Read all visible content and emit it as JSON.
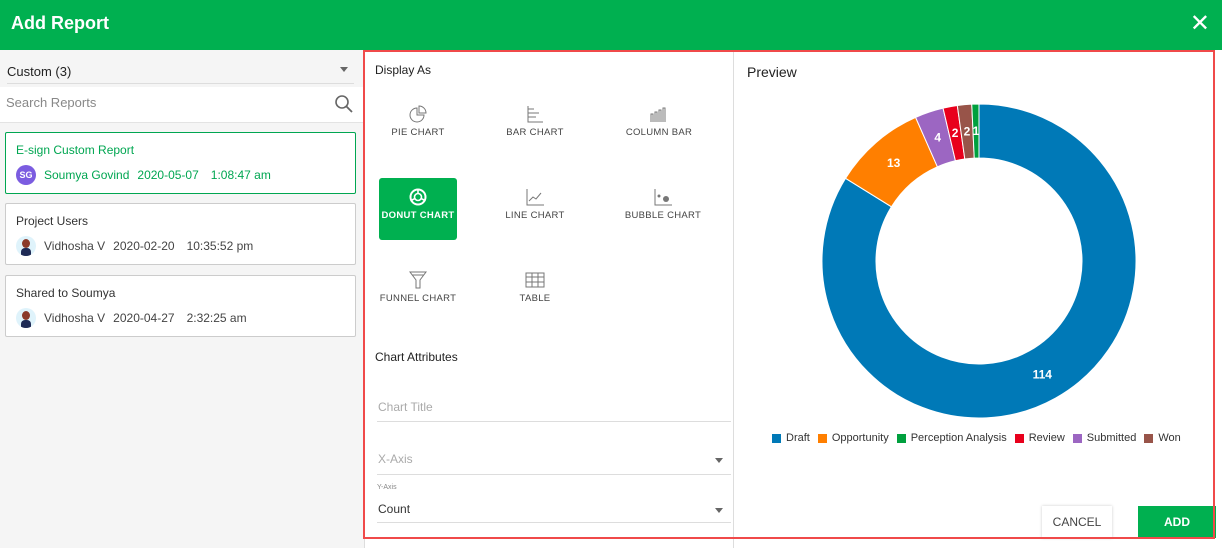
{
  "header": {
    "title": "Add Report",
    "close_icon": "close-icon"
  },
  "sidebar": {
    "filter": "Custom (3)",
    "search_placeholder": "Search Reports",
    "reports": [
      {
        "name": "E-sign Custom Report",
        "initials": "SG",
        "user": "Soumya Govind",
        "date": "2020-05-07",
        "time": "1:08:47 am",
        "active": true
      },
      {
        "name": "Project Users",
        "user": "Vidhosha V",
        "date": "2020-02-20",
        "time": "10:35:52 pm"
      },
      {
        "name": "Shared to Soumya",
        "user": "Vidhosha V",
        "date": "2020-04-27",
        "time": "2:32:25 am"
      }
    ]
  },
  "display": {
    "title": "Display As",
    "options": [
      {
        "label": "PIE CHART",
        "icon": "pie-chart-icon"
      },
      {
        "label": "BAR CHART",
        "icon": "bar-chart-icon"
      },
      {
        "label": "COLUMN BAR",
        "icon": "column-bar-icon"
      },
      {
        "label": "DONUT CHART",
        "icon": "donut-chart-icon",
        "selected": true
      },
      {
        "label": "LINE CHART",
        "icon": "line-chart-icon"
      },
      {
        "label": "BUBBLE CHART",
        "icon": "bubble-chart-icon"
      },
      {
        "label": "FUNNEL CHART",
        "icon": "funnel-chart-icon"
      },
      {
        "label": "TABLE",
        "icon": "table-icon"
      }
    ]
  },
  "attributes": {
    "title": "Chart Attributes",
    "chart_title_placeholder": "Chart Title",
    "x_axis_placeholder": "X-Axis",
    "y_axis_label": "Y-Axis",
    "y_axis_value": "Count"
  },
  "preview": {
    "title": "Preview"
  },
  "buttons": {
    "cancel": "CANCEL",
    "add": "ADD"
  },
  "colors": {
    "accent": "#00b050"
  },
  "chart_data": {
    "type": "pie",
    "donut": true,
    "legend_position": "bottom",
    "categories": [
      "Draft",
      "Opportunity",
      "Perception Analysis",
      "Review",
      "Submitted",
      "Won"
    ],
    "values": [
      114,
      13,
      1,
      2,
      4,
      2
    ],
    "colors": [
      "#0079b7",
      "#ff7f00",
      "#00a03e",
      "#e8001c",
      "#9c66c2",
      "#985449"
    ],
    "draw_order": [
      "Draft",
      "Opportunity",
      "Submitted",
      "Review",
      "Won",
      "Perception Analysis"
    ]
  }
}
